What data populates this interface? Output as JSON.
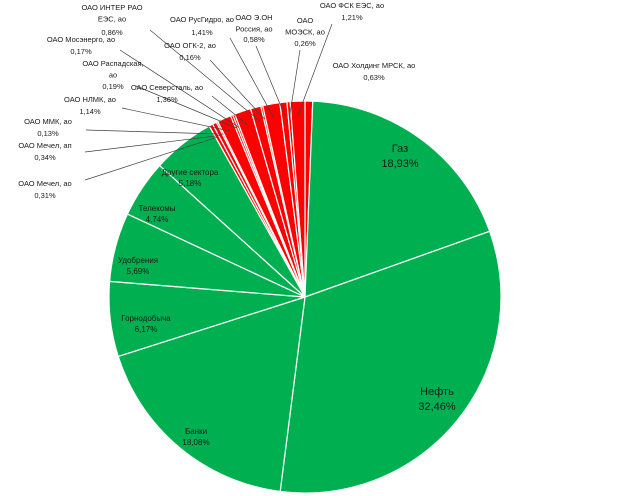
{
  "chart_data": {
    "type": "pie",
    "title": "",
    "colors": {
      "highlight": "#ff0000",
      "base": "#00b050",
      "border": "#ffffff",
      "leader": "#404040"
    },
    "slices": [
      {
        "name": "ОАО Холдинг МРСК, ао",
        "label": "ОАО Холдинг МРСК, ао",
        "value_label": "0,63%",
        "value": 0.63,
        "highlight": true
      },
      {
        "name": "Газ",
        "label": "Газ",
        "value_label": "18,93%",
        "value": 18.93,
        "highlight": false
      },
      {
        "name": "Нефть",
        "label": "Нефть",
        "value_label": "32,46%",
        "value": 32.46,
        "highlight": false
      },
      {
        "name": "Банки",
        "label": "Банки",
        "value_label": "18,08%",
        "value": 18.08,
        "highlight": false
      },
      {
        "name": "Горнодобыча",
        "label": "Горнодобыча",
        "value_label": "6,17%",
        "value": 6.17,
        "highlight": false
      },
      {
        "name": "Удобрения",
        "label": "Удобрения",
        "value_label": "5,69%",
        "value": 5.69,
        "highlight": false
      },
      {
        "name": "Телекомы",
        "label": "Телекомы",
        "value_label": "4,74%",
        "value": 4.74,
        "highlight": false
      },
      {
        "name": "Другие сектора",
        "label": "Другие сектора",
        "value_label": "5,18%",
        "value": 5.18,
        "highlight": false
      },
      {
        "name": "ОАО Мечел, ао",
        "label": "ОАО Мечел, ао",
        "value_label": "0,31%",
        "value": 0.31,
        "highlight": true
      },
      {
        "name": "ОАО Мечел, ап",
        "label": "ОАО Мечел, ап",
        "value_label": "0,34%",
        "value": 0.34,
        "highlight": true
      },
      {
        "name": "ОАО ММК, ао",
        "label": "ОАО ММК, ао",
        "value_label": "0,13%",
        "value": 0.13,
        "highlight": true
      },
      {
        "name": "ОАО НЛМК, ао",
        "label": "ОАО НЛМК, ао",
        "value_label": "1,14%",
        "value": 1.14,
        "highlight": true
      },
      {
        "name": "ОАО Распадская, ао",
        "label": "ОАО Распадская, ао",
        "value_label": "0,19%",
        "value": 0.19,
        "highlight": true
      },
      {
        "name": "ОАО Мосэнерго, ао",
        "label": "ОАО Мосэнерго, ао",
        "value_label": "0,17%",
        "value": 0.17,
        "highlight": true
      },
      {
        "name": "ОАО Северсталь, ао",
        "label": "ОАО Северсталь, ао",
        "value_label": "1,36%",
        "value": 1.36,
        "highlight": true
      },
      {
        "name": "ОАО ИНТЕР РАО ЕЭС, ао",
        "label": "ОАО ИНТЕР РАО ЕЭС, ао",
        "value_label": "0,86%",
        "value": 0.86,
        "highlight": true
      },
      {
        "name": "ОАО ОГК-2, ао",
        "label": "ОАО ОГК-2, ао",
        "value_label": "0,16%",
        "value": 0.16,
        "highlight": true
      },
      {
        "name": "ОАО РусГидро, ао",
        "label": "ОАО РусГидро, ао",
        "value_label": "1,41%",
        "value": 1.41,
        "highlight": true
      },
      {
        "name": "ОАО Э.ОН Россия, ао",
        "label": "ОАО Э.ОН Россия, ао",
        "value_label": "0,58%",
        "value": 0.58,
        "highlight": true
      },
      {
        "name": "ОАО МОЭСК, ао",
        "label": "ОАО МОЭСК, ао",
        "value_label": "0,26%",
        "value": 0.26,
        "highlight": true
      },
      {
        "name": "ОАО ФСК ЕЭС, ао",
        "label": "ОАО ФСК ЕЭС, ао",
        "value_label": "1,21%",
        "value": 1.21,
        "highlight": true
      }
    ]
  }
}
